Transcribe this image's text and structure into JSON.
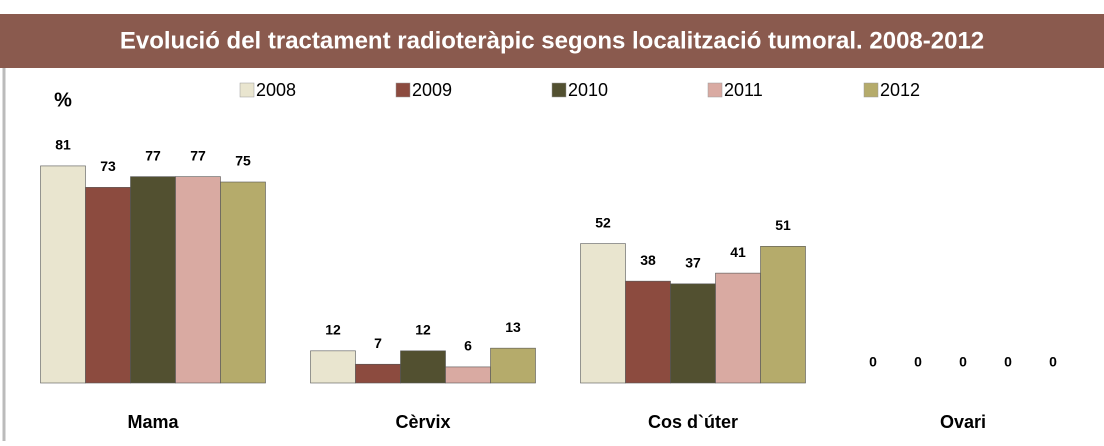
{
  "chart_data": {
    "type": "bar",
    "title": "Evolució del tractament radioteràpic segons localització tumoral. 2008-2012",
    "y_label": "%",
    "categories": [
      "Mama",
      "Cèrvix",
      "Cos d`úter",
      "Ovari"
    ],
    "ylim": [
      0,
      100
    ],
    "series": [
      {
        "name": "2008",
        "color": "#e9e5cf",
        "values": [
          81,
          12,
          52,
          0
        ]
      },
      {
        "name": "2009",
        "color": "#8c4b3f",
        "values": [
          73,
          7,
          38,
          0
        ]
      },
      {
        "name": "2010",
        "color": "#525030",
        "values": [
          77,
          12,
          37,
          0
        ]
      },
      {
        "name": "2011",
        "color": "#d9aaa2",
        "values": [
          77,
          6,
          41,
          0
        ]
      },
      {
        "name": "2012",
        "color": "#b5ab6b",
        "values": [
          75,
          13,
          51,
          0
        ]
      }
    ]
  }
}
